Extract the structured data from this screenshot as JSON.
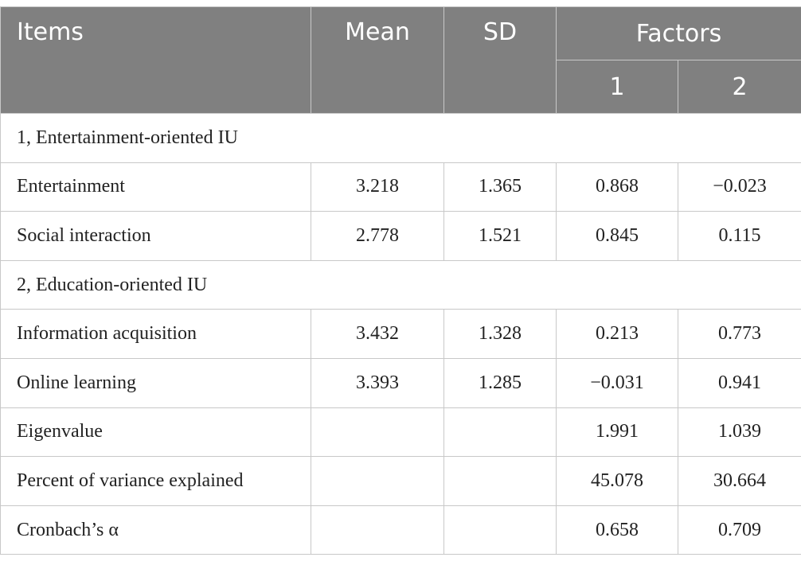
{
  "table": {
    "header": {
      "items": "Items",
      "mean": "Mean",
      "sd": "SD",
      "factors": "Factors",
      "f1": "1",
      "f2": "2"
    },
    "rows": [
      {
        "section": "1, Entertainment-oriented IU"
      },
      {
        "label": "Entertainment",
        "mean": "3.218",
        "sd": "1.365",
        "f1": "0.868",
        "f2": "−0.023"
      },
      {
        "label": "Social interaction",
        "mean": "2.778",
        "sd": "1.521",
        "f1": "0.845",
        "f2": "0.115"
      },
      {
        "section": "2, Education-oriented IU"
      },
      {
        "label": "Information acquisition",
        "mean": "3.432",
        "sd": "1.328",
        "f1": "0.213",
        "f2": "0.773"
      },
      {
        "label": "Online learning",
        "mean": "3.393",
        "sd": "1.285",
        "f1": "−0.031",
        "f2": "0.941"
      },
      {
        "label": "Eigenvalue",
        "f1": "1.991",
        "f2": "1.039"
      },
      {
        "label": "Percent of variance explained",
        "f1": "45.078",
        "f2": "30.664"
      },
      {
        "label": "Cronbach’s α",
        "f1": "0.658",
        "f2": "0.709"
      }
    ]
  }
}
